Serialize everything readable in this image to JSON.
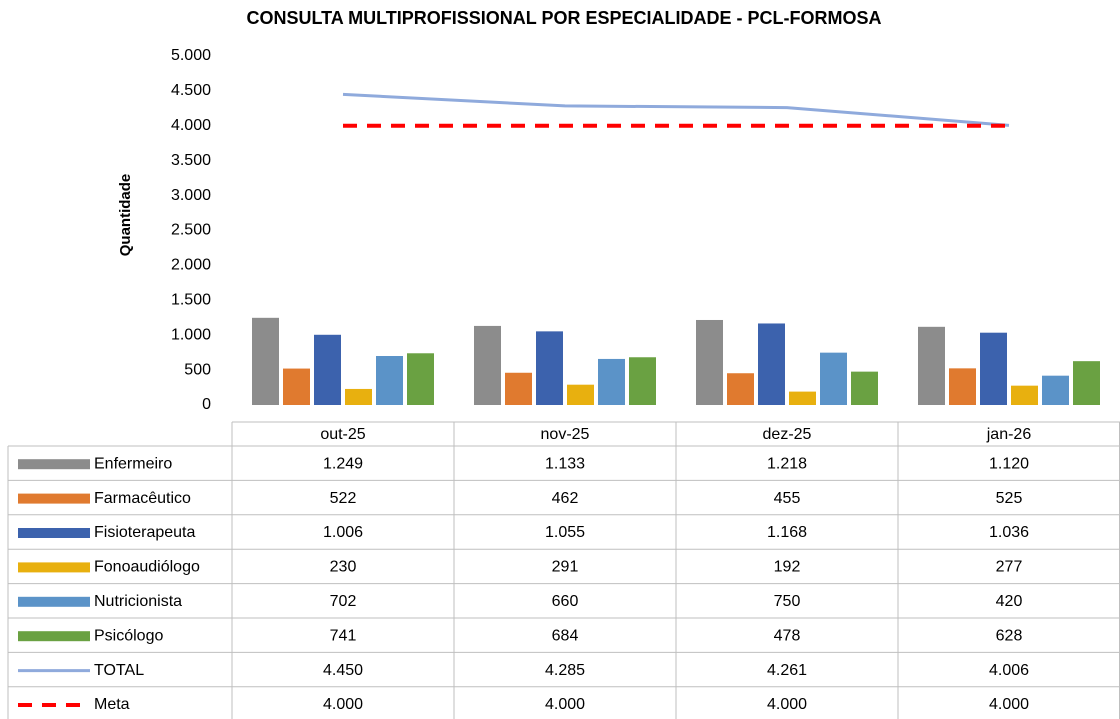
{
  "chart_data": {
    "type": "bar",
    "title": "CONSULTA MULTIPROFISSIONAL POR ESPECIALIDADE - PCL-FORMOSA",
    "y_label": "Quantidade",
    "categories": [
      "out-25",
      "nov-25",
      "dez-25",
      "jan-26"
    ],
    "ylim": [
      0,
      5000
    ],
    "yticks": [
      0,
      500,
      {
        "value": 1000,
        "label": "1.000"
      },
      {
        "value": 1500,
        "label": "1.500"
      },
      {
        "value": 2000,
        "label": "2.000"
      },
      {
        "value": 2500,
        "label": "2.500"
      },
      {
        "value": 3000,
        "label": "3.000"
      },
      {
        "value": 3500,
        "label": "3.500"
      },
      {
        "value": 4000,
        "label": "4.000"
      },
      {
        "value": 4500,
        "label": "4.500"
      },
      {
        "value": 5000,
        "label": "5.000"
      }
    ],
    "grid": false,
    "legend": "table",
    "series": [
      {
        "name": "Enfermeiro",
        "type": "bar",
        "color": "#8c8c8c",
        "values": [
          1249,
          1133,
          1218,
          1120
        ],
        "value_labels": [
          "1.249",
          "1.133",
          "1.218",
          "1.120"
        ]
      },
      {
        "name": "Farmacêutico",
        "type": "bar",
        "color": "#e07a2f",
        "values": [
          522,
          462,
          455,
          525
        ]
      },
      {
        "name": "Fisioterapeuta",
        "type": "bar",
        "color": "#3c62ad",
        "values": [
          1006,
          1055,
          1168,
          1036
        ],
        "value_labels": [
          "1.006",
          "1.055",
          "1.168",
          "1.036"
        ]
      },
      {
        "name": "Fonoaudiólogo",
        "type": "bar",
        "color": "#e8b00f",
        "values": [
          230,
          291,
          192,
          277
        ]
      },
      {
        "name": "Nutricionista",
        "type": "bar",
        "color": "#5b93c8",
        "values": [
          702,
          660,
          750,
          420
        ]
      },
      {
        "name": "Psicólogo",
        "type": "bar",
        "color": "#6aa142",
        "values": [
          741,
          684,
          478,
          628
        ]
      },
      {
        "name": "TOTAL",
        "type": "line",
        "line_style": "solid",
        "color": "#8faadc",
        "values": [
          4450,
          4285,
          4261,
          4006
        ],
        "value_labels": [
          "4.450",
          "4.285",
          "4.261",
          "4.006"
        ]
      },
      {
        "name": "Meta",
        "type": "line",
        "line_style": "dashed",
        "color": "#ff0000",
        "values": [
          4000,
          4000,
          4000,
          4000
        ],
        "value_labels": [
          "4.000",
          "4.000",
          "4.000",
          "4.000"
        ]
      }
    ]
  }
}
